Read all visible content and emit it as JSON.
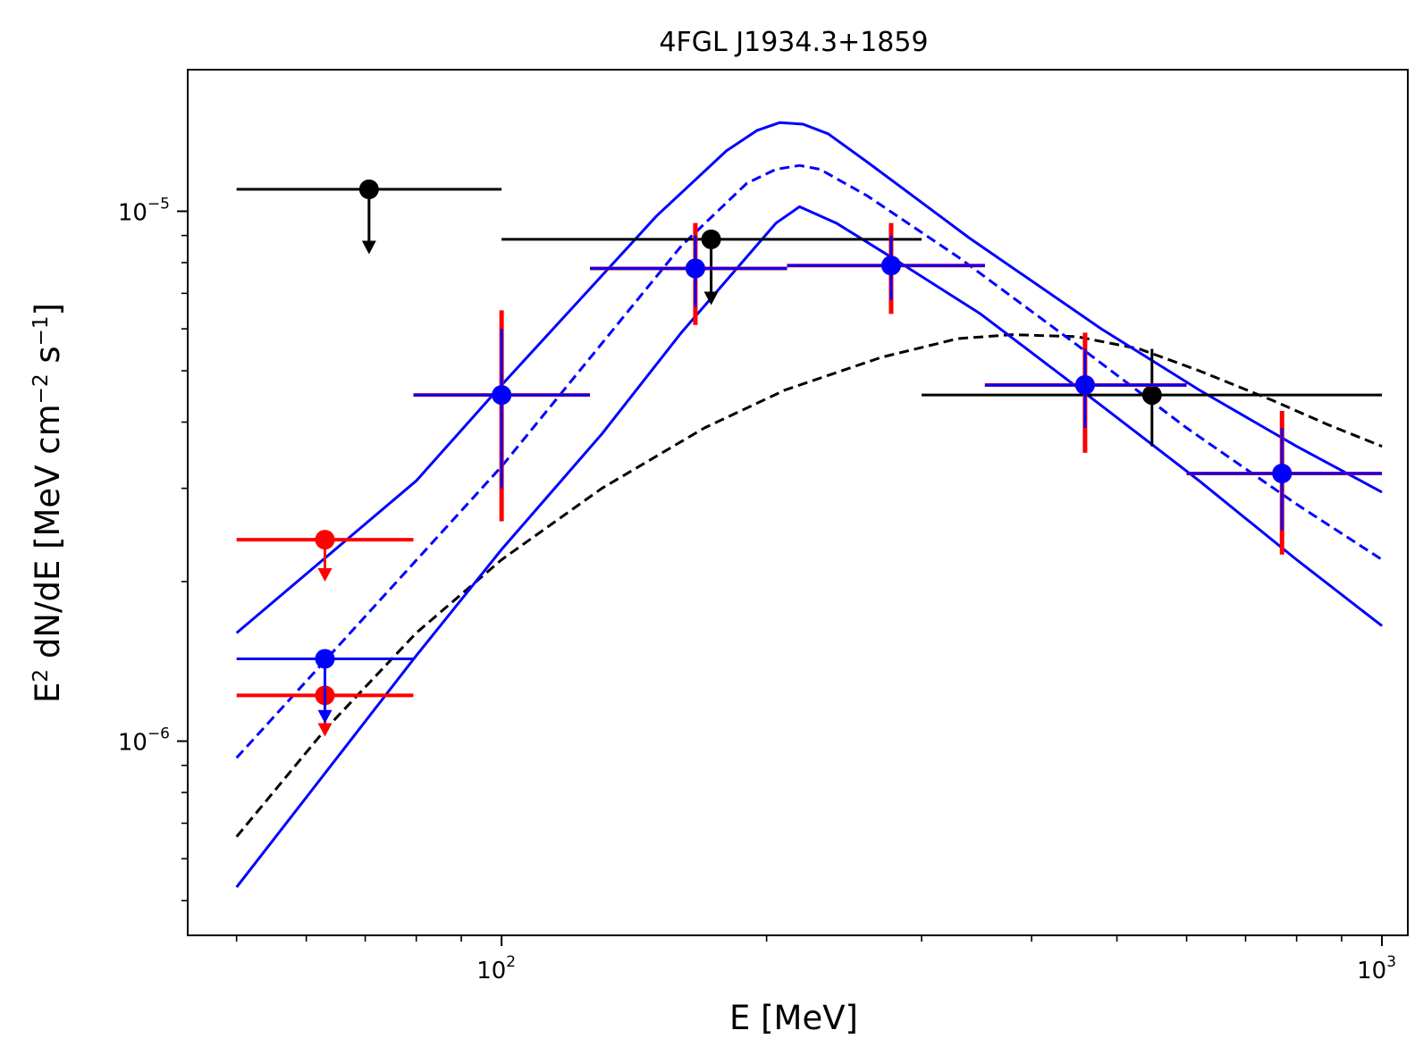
{
  "chart_data": {
    "type": "scatter",
    "title": "4FGL J1934.3+1859",
    "xlabel": {
      "main": "E [MeV]"
    },
    "ylabel": {
      "p1": "E",
      "p1sup": "2",
      "p2": " dN/dE [MeV cm",
      "p2sup": "−2",
      "p3": " s",
      "p3sup": "−1",
      "p4": "]"
    },
    "xscale": "log",
    "yscale": "log",
    "xlim": [
      44,
      1070
    ],
    "ylim": [
      4.3e-07,
      1.85e-05
    ],
    "xticks": [
      {
        "value": 100,
        "base": "10",
        "exp": "2"
      },
      {
        "value": 1000,
        "base": "10",
        "exp": "3"
      }
    ],
    "yticks": [
      {
        "value": 1e-06,
        "base": "10",
        "exp": "−6"
      },
      {
        "value": 1e-05,
        "base": "10",
        "exp": "−5"
      }
    ],
    "xminor": [
      50,
      60,
      70,
      80,
      90,
      200,
      300,
      400,
      500,
      600,
      700,
      800,
      900
    ],
    "yminor": [
      5e-07,
      6e-07,
      7e-07,
      8e-07,
      9e-07,
      2e-06,
      3e-06,
      4e-06,
      5e-06,
      6e-06,
      7e-06,
      8e-06,
      9e-06
    ],
    "grid": false,
    "colors": {
      "black": "#000000",
      "red": "#ff0000",
      "blue": "#0000ff"
    },
    "series": [
      {
        "name": "black-points",
        "color": "#000000",
        "points": [
          {
            "x": 70.7,
            "y": 1.1e-05,
            "xlo": 50,
            "xhi": 100,
            "upper_limit": true,
            "ul_to": 8.3e-06
          },
          {
            "x": 173,
            "y": 8.85e-06,
            "xlo": 100,
            "xhi": 300,
            "upper_limit": true,
            "ul_to": 6.65e-06
          },
          {
            "x": 548,
            "y": 4.5e-06,
            "xlo": 300,
            "xhi": 1000,
            "ylo": 3.6e-06,
            "yhi": 5.5e-06
          }
        ]
      },
      {
        "name": "red-points",
        "color": "#ff0000",
        "points": [
          {
            "x": 63,
            "y": 2.4e-06,
            "xlo": 50,
            "xhi": 79.4,
            "upper_limit": true,
            "ul_to": 2e-06
          },
          {
            "x": 63,
            "y": 1.22e-06,
            "xlo": 50,
            "xhi": 79.4,
            "upper_limit": true,
            "ul_to": 1.02e-06
          },
          {
            "x": 100,
            "y": 4.5e-06,
            "xlo": 79.4,
            "xhi": 126,
            "ylo": 2.6e-06,
            "yhi": 6.5e-06
          },
          {
            "x": 166,
            "y": 7.8e-06,
            "xlo": 126,
            "xhi": 211,
            "ylo": 6.1e-06,
            "yhi": 9.5e-06
          },
          {
            "x": 277,
            "y": 7.9e-06,
            "xlo": 211,
            "xhi": 354,
            "ylo": 6.4e-06,
            "yhi": 9.5e-06
          },
          {
            "x": 460,
            "y": 4.7e-06,
            "xlo": 354,
            "xhi": 600,
            "ylo": 3.5e-06,
            "yhi": 5.9e-06
          },
          {
            "x": 770,
            "y": 3.2e-06,
            "xlo": 600,
            "xhi": 1000,
            "ylo": 2.25e-06,
            "yhi": 4.2e-06
          }
        ]
      },
      {
        "name": "blue-points",
        "color": "#0000ff",
        "points": [
          {
            "x": 63,
            "y": 1.43e-06,
            "xlo": 50,
            "xhi": 79.4,
            "upper_limit": true,
            "ul_to": 1.08e-06
          },
          {
            "x": 100,
            "y": 4.5e-06,
            "xlo": 79.4,
            "xhi": 126,
            "ylo": 3e-06,
            "yhi": 6e-06
          },
          {
            "x": 166,
            "y": 7.8e-06,
            "xlo": 126,
            "xhi": 211,
            "ylo": 6.6e-06,
            "yhi": 9e-06
          },
          {
            "x": 277,
            "y": 7.9e-06,
            "xlo": 211,
            "xhi": 354,
            "ylo": 6.8e-06,
            "yhi": 9e-06
          },
          {
            "x": 460,
            "y": 4.7e-06,
            "xlo": 354,
            "xhi": 600,
            "ylo": 3.9e-06,
            "yhi": 5.5e-06
          },
          {
            "x": 770,
            "y": 3.2e-06,
            "xlo": 600,
            "xhi": 1000,
            "ylo": 2.5e-06,
            "yhi": 3.9e-06
          }
        ]
      }
    ],
    "curves": [
      {
        "name": "logparabola-model",
        "color": "#000000",
        "dashed": true,
        "x": [
          50,
          63,
          80,
          100,
          130,
          170,
          210,
          270,
          330,
          380,
          450,
          530,
          620,
          750,
          870,
          1000
        ],
        "y": [
          6.6e-07,
          1.05e-06,
          1.6e-06,
          2.2e-06,
          3e-06,
          3.9e-06,
          4.6e-06,
          5.3e-06,
          5.75e-06,
          5.85e-06,
          5.8e-06,
          5.5e-06,
          5e-06,
          4.4e-06,
          3.95e-06,
          3.6e-06
        ]
      },
      {
        "name": "broken-powerlaw-model",
        "color": "#0000ff",
        "dashed": true,
        "x": [
          50,
          100,
          160,
          190,
          205,
          218,
          230,
          260,
          330,
          450,
          600,
          800,
          1000
        ],
        "y": [
          9.3e-07,
          3.3e-06,
          8.6e-06,
          1.13e-05,
          1.2e-05,
          1.22e-05,
          1.2e-05,
          1.07e-05,
          8.2e-06,
          5.6e-06,
          3.9e-06,
          2.8e-06,
          2.2e-06
        ]
      },
      {
        "name": "broken-powerlaw-upper-band",
        "color": "#0000ff",
        "dashed": false,
        "x": [
          50,
          80,
          100,
          150,
          180,
          195,
          207,
          220,
          235,
          260,
          340,
          480,
          620,
          800,
          1000
        ],
        "y": [
          1.6e-06,
          3.1e-06,
          4.7e-06,
          9.8e-06,
          1.3e-05,
          1.42e-05,
          1.47e-05,
          1.46e-05,
          1.4e-05,
          1.24e-05,
          8.9e-06,
          6e-06,
          4.6e-06,
          3.6e-06,
          2.95e-06
        ]
      },
      {
        "name": "broken-powerlaw-lower-band",
        "color": "#0000ff",
        "dashed": false,
        "x": [
          50,
          80,
          100,
          130,
          160,
          185,
          205,
          218,
          240,
          280,
          350,
          480,
          620,
          800,
          1000
        ],
        "y": [
          5.3e-07,
          1.45e-06,
          2.3e-06,
          3.8e-06,
          5.9e-06,
          7.8e-06,
          9.5e-06,
          1.02e-05,
          9.5e-06,
          8.1e-06,
          6.4e-06,
          4.3e-06,
          3.1e-06,
          2.2e-06,
          1.65e-06
        ]
      }
    ]
  }
}
